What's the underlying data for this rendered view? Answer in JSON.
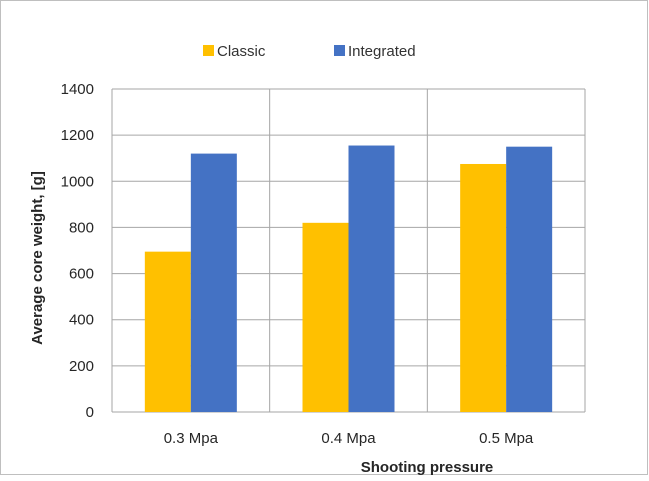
{
  "chart_data": {
    "type": "bar",
    "title": "",
    "xlabel": "Shooting pressure",
    "ylabel": "Average core weight, [g]",
    "categories": [
      "0.3 Mpa",
      "0.4 Mpa",
      "0.5 Mpa"
    ],
    "series": [
      {
        "name": "Classic",
        "color": "#FFC000",
        "values": [
          695,
          820,
          1075
        ]
      },
      {
        "name": "Integrated",
        "color": "#4472C4",
        "values": [
          1120,
          1155,
          1150
        ]
      }
    ],
    "ylim": [
      0,
      1400
    ],
    "yticks": [
      0,
      200,
      400,
      600,
      800,
      1000,
      1200,
      1400
    ],
    "grid": "horizontal and vertical",
    "legend_position": "top"
  }
}
